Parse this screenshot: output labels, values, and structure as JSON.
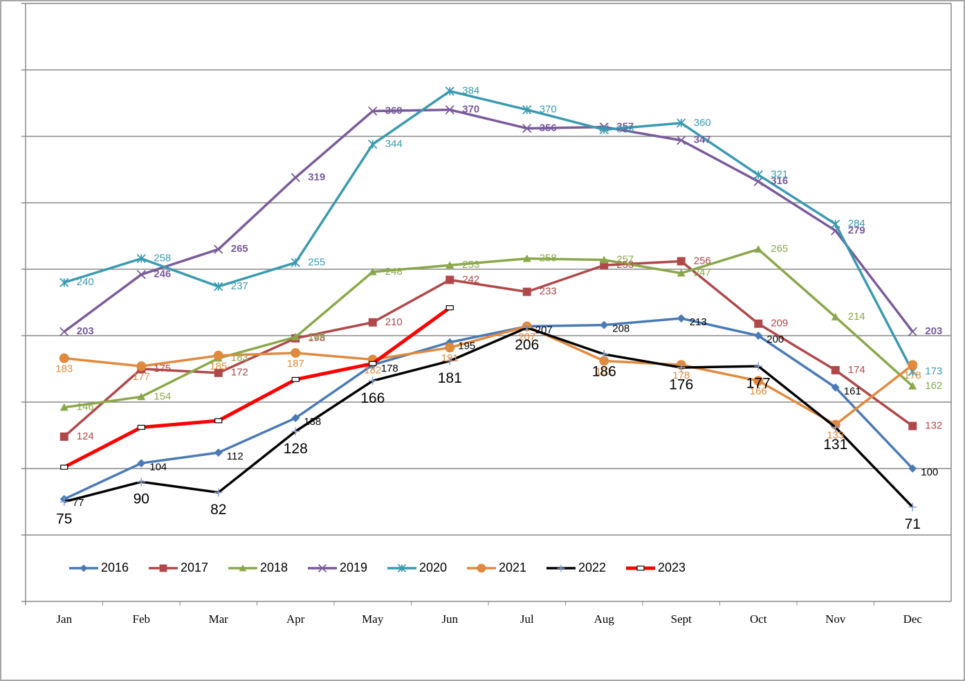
{
  "chart_data": {
    "type": "line",
    "categories": [
      "Jan",
      "Feb",
      "Mar",
      "Apr",
      "May",
      "Jun",
      "Jul",
      "Aug",
      "Sept",
      "Oct",
      "Nov",
      "Dec"
    ],
    "ylim": [
      0,
      450
    ],
    "yticks": [
      0,
      50,
      100,
      150,
      200,
      250,
      300,
      350,
      400,
      450
    ],
    "grid": true,
    "legend": "bottom",
    "series": [
      {
        "name": "2016",
        "color": "#4a7ab5",
        "marker": "diamond",
        "values": [
          77,
          104,
          112,
          138,
          178,
          195,
          207,
          208,
          213,
          200,
          161,
          100
        ]
      },
      {
        "name": "2017",
        "color": "#b0484a",
        "marker": "square",
        "values": [
          124,
          175,
          172,
          198,
          210,
          242,
          233,
          253,
          256,
          209,
          174,
          132
        ]
      },
      {
        "name": "2018",
        "color": "#8aa84a",
        "marker": "triangle",
        "values": [
          146,
          154,
          183,
          199,
          248,
          253,
          258,
          257,
          247,
          265,
          214,
          162
        ]
      },
      {
        "name": "2019",
        "color": "#7a5a9a",
        "marker": "x",
        "values": [
          203,
          246,
          265,
          319,
          369,
          370,
          356,
          357,
          347,
          316,
          279,
          203
        ]
      },
      {
        "name": "2020",
        "color": "#3a9ab0",
        "marker": "star",
        "values": [
          240,
          258,
          237,
          255,
          344,
          384,
          370,
          355,
          360,
          321,
          284,
          173
        ]
      },
      {
        "name": "2021",
        "color": "#e08a3e",
        "marker": "circle",
        "values": [
          183,
          177,
          185,
          187,
          182,
          191,
          207,
          181,
          178,
          166,
          133,
          178
        ]
      },
      {
        "name": "2022",
        "color": "#000000",
        "marker": "plus",
        "values": [
          75,
          90,
          82,
          128,
          166,
          181,
          206,
          186,
          176,
          177,
          131,
          71
        ]
      },
      {
        "name": "2023",
        "color": "#ff0000",
        "marker": "dash",
        "values": [
          101,
          131,
          136,
          167,
          179,
          221,
          null,
          null,
          null,
          null,
          null,
          null
        ]
      }
    ]
  }
}
